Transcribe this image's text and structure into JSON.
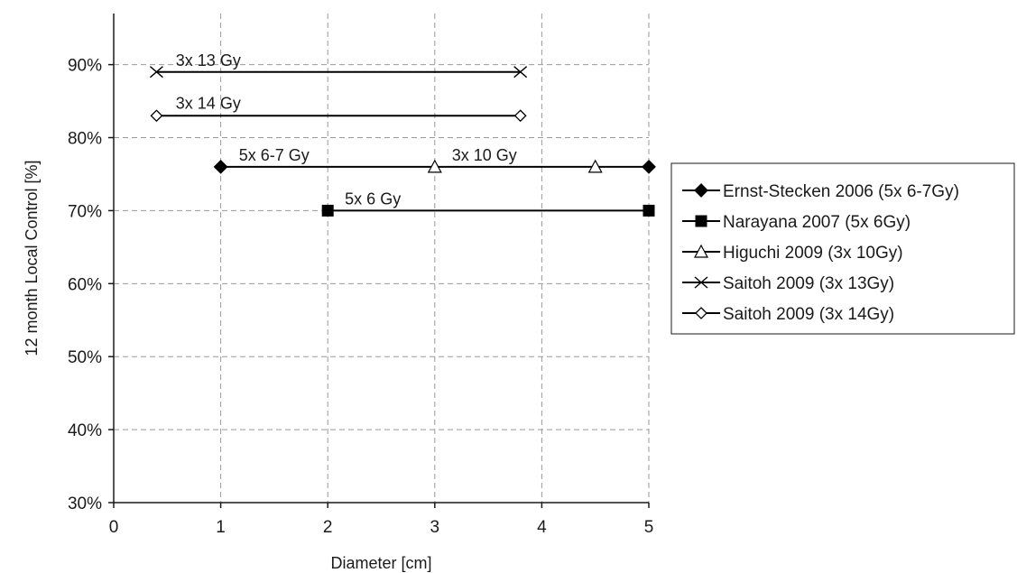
{
  "chart_data": {
    "type": "line",
    "xlabel": "Diameter [cm]",
    "ylabel": "12 month Local Control [%]",
    "xlim": [
      0,
      5
    ],
    "ylim": [
      30,
      97
    ],
    "x_ticks": [
      0,
      1,
      2,
      3,
      4,
      5
    ],
    "x_tick_labels": [
      "0",
      "1",
      "2",
      "3",
      "4",
      "5"
    ],
    "y_ticks": [
      30,
      40,
      50,
      60,
      70,
      80,
      90
    ],
    "y_tick_labels": [
      "30%",
      "40%",
      "50%",
      "60%",
      "70%",
      "80%",
      "90%"
    ],
    "grid": true,
    "legend_position": "right",
    "series": [
      {
        "name": "Ernst-Stecken 2006 (5x 6-7Gy)",
        "marker": "diamond-filled",
        "x": [
          1,
          5
        ],
        "y": [
          76,
          76
        ]
      },
      {
        "name": "Narayana 2007 (5x 6Gy)",
        "marker": "square-filled",
        "x": [
          2,
          5
        ],
        "y": [
          70,
          70
        ]
      },
      {
        "name": "Higuchi 2009 (3x 10Gy)",
        "marker": "triangle-open",
        "x": [
          3,
          4.5
        ],
        "y": [
          76,
          76
        ]
      },
      {
        "name": "Saitoh 2009 (3x 13Gy)",
        "marker": "x",
        "x": [
          0.4,
          3.8
        ],
        "y": [
          89,
          89
        ]
      },
      {
        "name": "Saitoh 2009 (3x 14Gy)",
        "marker": "diamond-open",
        "x": [
          0.4,
          3.8
        ],
        "y": [
          83,
          83
        ]
      }
    ],
    "annotations": [
      {
        "text": "3x 13 Gy",
        "x": 0.58,
        "y": 90.1
      },
      {
        "text": "3x 14 Gy",
        "x": 0.58,
        "y": 84.2
      },
      {
        "text": "5x 6-7 Gy",
        "x": 1.17,
        "y": 77.1
      },
      {
        "text": "3x 10 Gy",
        "x": 3.16,
        "y": 77.1
      },
      {
        "text": "5x 6 Gy",
        "x": 2.16,
        "y": 71.1
      }
    ]
  }
}
